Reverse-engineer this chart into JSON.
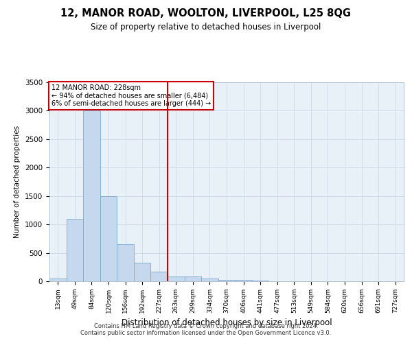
{
  "title": "12, MANOR ROAD, WOOLTON, LIVERPOOL, L25 8QG",
  "subtitle": "Size of property relative to detached houses in Liverpool",
  "xlabel": "Distribution of detached houses by size in Liverpool",
  "ylabel": "Number of detached properties",
  "footer_line1": "Contains HM Land Registry data © Crown copyright and database right 2024.",
  "footer_line2": "Contains public sector information licensed under the Open Government Licence v3.0.",
  "categories": [
    "13sqm",
    "49sqm",
    "84sqm",
    "120sqm",
    "156sqm",
    "192sqm",
    "227sqm",
    "263sqm",
    "299sqm",
    "334sqm",
    "370sqm",
    "406sqm",
    "441sqm",
    "477sqm",
    "513sqm",
    "549sqm",
    "584sqm",
    "620sqm",
    "656sqm",
    "691sqm",
    "727sqm"
  ],
  "values": [
    50,
    1100,
    3000,
    1500,
    650,
    320,
    175,
    90,
    80,
    50,
    30,
    20,
    10,
    5,
    3,
    2,
    1,
    0,
    0,
    0,
    0
  ],
  "bar_color": "#c5d8ee",
  "bar_edge_color": "#7aaad0",
  "grid_color": "#d0dde8",
  "background_color": "#e8f0f8",
  "annotation_title": "12 MANOR ROAD: 228sqm",
  "annotation_line2": "← 94% of detached houses are smaller (6,484)",
  "annotation_line3": "6% of semi-detached houses are larger (444) →",
  "annotation_box_color": "#ffffff",
  "annotation_box_edge_color": "#cc0000",
  "property_line_color": "#cc0000",
  "property_line_index": 6,
  "ylim": [
    0,
    3500
  ],
  "yticks": [
    0,
    500,
    1000,
    1500,
    2000,
    2500,
    3000,
    3500
  ]
}
